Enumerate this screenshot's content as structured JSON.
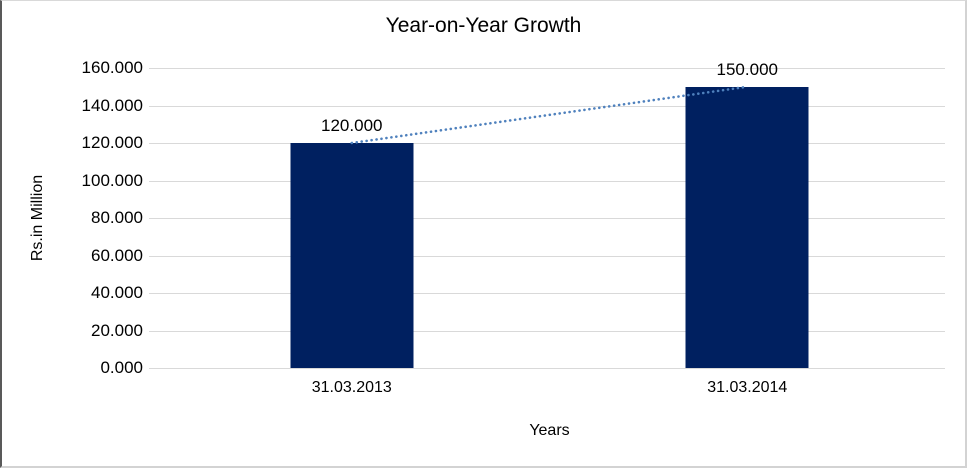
{
  "chart_data": {
    "type": "bar",
    "title": "Year-on-Year Growth",
    "xlabel": "Years",
    "ylabel": "Rs.in Million",
    "categories": [
      "31.03.2013",
      "31.03.2014"
    ],
    "values": [
      120,
      150
    ],
    "data_labels": [
      "120.000",
      "150.000"
    ],
    "ylim": [
      0,
      160
    ],
    "ytick_step": 20,
    "yticks": [
      "160.000",
      "140.000",
      "120.000",
      "100.000",
      "80.000",
      "60.000",
      "40.000",
      "20.000",
      "0.000"
    ],
    "grid": true,
    "legend": "none",
    "bar_color": "#002060",
    "gridline_color": "#d9d9d9",
    "trendline": {
      "style": "dotted",
      "color": "#4f81bd",
      "from_value": 120,
      "to_value": 150
    }
  }
}
